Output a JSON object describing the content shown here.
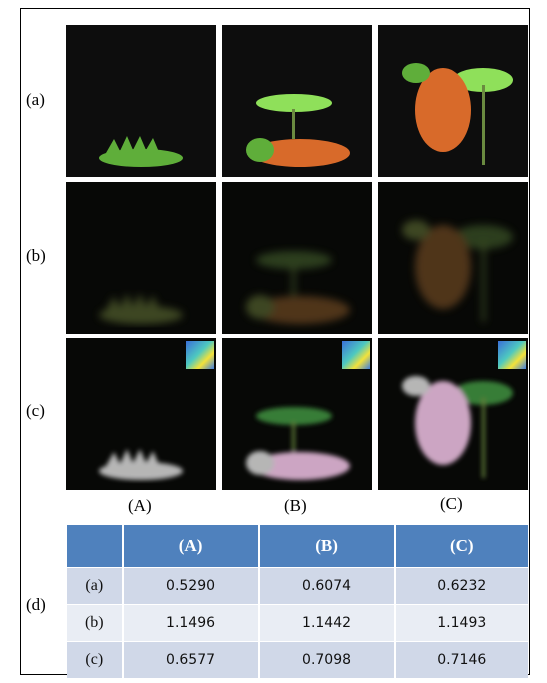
{
  "figure": {
    "row_labels": [
      "(a)",
      "(b)",
      "(c)"
    ],
    "column_labels": [
      "(A)",
      "(B)",
      "(C)"
    ],
    "table_label": "(d)"
  },
  "table": {
    "header": [
      "(A)",
      "(B)",
      "(C)"
    ],
    "rows": [
      [
        "(a)",
        "0.5290",
        "0.6074",
        "0.6232"
      ],
      [
        "(b)",
        "1.1496",
        "1.1442",
        "1.1493"
      ],
      [
        "(c)",
        "0.6577",
        "0.7098",
        "0.7146"
      ]
    ]
  }
}
